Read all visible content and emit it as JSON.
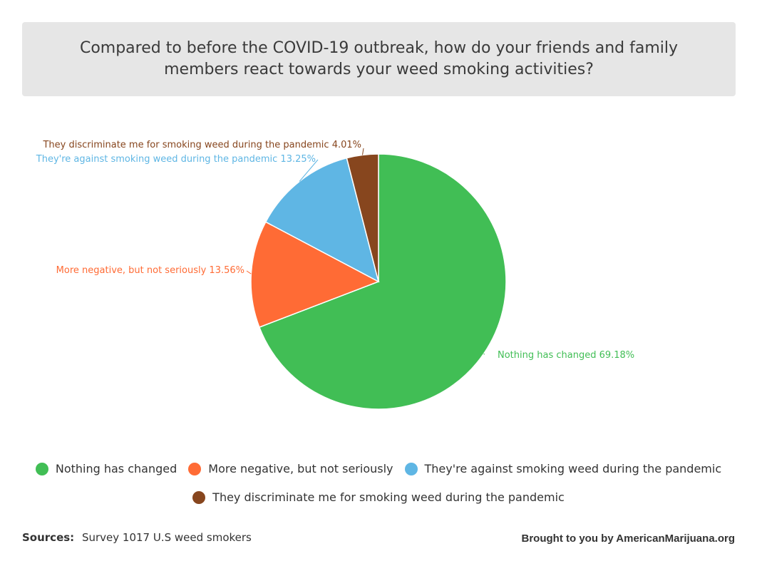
{
  "chart_data": {
    "type": "pie",
    "title": "Compared to before the COVID-19 outbreak, how do your friends and family members react towards your weed smoking activities?",
    "series": [
      {
        "name": "Nothing has changed",
        "value": 69.18,
        "label": "69.18%",
        "color": "#41be55"
      },
      {
        "name": "More negative, but not seriously",
        "value": 13.56,
        "label": "13.56%",
        "color": "#ff6b35"
      },
      {
        "name": "They're against smoking weed during the pandemic",
        "value": 13.25,
        "label": "13.25%",
        "color": "#5fb6e4"
      },
      {
        "name": "They discriminate me for smoking weed during the pandemic",
        "value": 4.01,
        "label": "4.01%",
        "color": "#87461e"
      }
    ],
    "legend_position": "bottom"
  },
  "data_labels": [
    "Nothing has changed 69.18%",
    "More negative, but not seriously 13.56%",
    "They're against smoking weed during the pandemic 13.25%",
    "They discriminate me for smoking weed during the pandemic 4.01%"
  ],
  "footer": {
    "sources_label": "Sources:",
    "sources_text": "Survey 1017 U.S weed smokers",
    "credit": "Brought to you by AmericanMarijuana.org"
  }
}
